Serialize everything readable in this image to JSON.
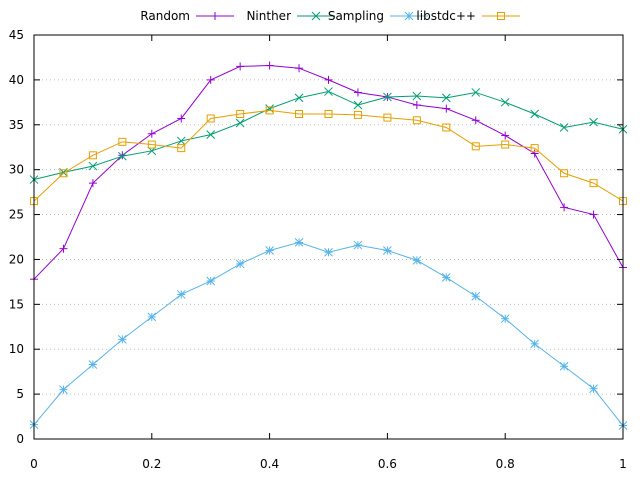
{
  "chart_data": {
    "type": "line",
    "x": [
      0,
      0.05,
      0.1,
      0.15,
      0.2,
      0.25,
      0.3,
      0.35,
      0.4,
      0.45,
      0.5,
      0.55,
      0.6,
      0.65,
      0.7,
      0.75,
      0.8,
      0.85,
      0.9,
      0.95,
      1
    ],
    "xlim": [
      0,
      1
    ],
    "ylim": [
      0,
      45
    ],
    "xticks": [
      0,
      0.2,
      0.4,
      0.6,
      0.8,
      1
    ],
    "xtick_labels": [
      "0",
      "0.2",
      "0.4",
      "0.6",
      "0.8",
      "1"
    ],
    "yticks": [
      0,
      5,
      10,
      15,
      20,
      25,
      30,
      35,
      40,
      45
    ],
    "ytick_labels": [
      "0",
      "5",
      "10",
      "15",
      "20",
      "25",
      "30",
      "35",
      "40",
      "45"
    ],
    "grid": "horizontal dotted",
    "legend_position": "top",
    "series": [
      {
        "name": "Random",
        "color": "#9400d3",
        "marker": "plus",
        "values": [
          17.8,
          21.2,
          28.5,
          31.6,
          34.0,
          35.7,
          40.0,
          41.5,
          41.6,
          41.3,
          40.0,
          38.6,
          38.1,
          37.2,
          36.8,
          35.5,
          33.8,
          31.8,
          25.8,
          25.0,
          19.1
        ]
      },
      {
        "name": "Ninther",
        "color": "#009e73",
        "marker": "x",
        "values": [
          28.9,
          29.7,
          30.4,
          31.5,
          32.1,
          33.2,
          33.9,
          35.2,
          36.8,
          38.0,
          38.7,
          37.2,
          38.1,
          38.2,
          38.0,
          38.6,
          37.5,
          36.2,
          34.7,
          35.3,
          34.5
        ]
      },
      {
        "name": "Sampling",
        "color": "#56b4e9",
        "marker": "star",
        "values": [
          1.6,
          5.5,
          8.3,
          11.1,
          13.6,
          16.1,
          17.6,
          19.5,
          21.0,
          21.9,
          20.8,
          21.6,
          21.0,
          19.9,
          18.0,
          15.9,
          13.4,
          10.6,
          8.1,
          5.6,
          1.5
        ]
      },
      {
        "name": "libstdc++",
        "color": "#e69f00",
        "marker": "square",
        "values": [
          26.5,
          29.6,
          31.6,
          33.1,
          32.8,
          32.4,
          35.7,
          36.2,
          36.6,
          36.2,
          36.2,
          36.1,
          35.8,
          35.5,
          34.7,
          32.6,
          32.8,
          32.4,
          29.6,
          28.5,
          26.5
        ]
      }
    ]
  }
}
